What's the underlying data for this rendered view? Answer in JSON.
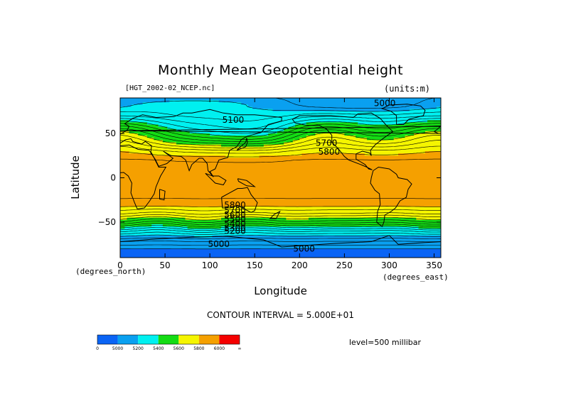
{
  "chart_data": {
    "type": "heatmap",
    "title": "Monthly Mean Geopotential height",
    "source": "[HGT_2002-02_NCEP.nc]",
    "units": "(units:m)",
    "xlabel": "Longitude",
    "ylabel": "Latitude",
    "x_unit_label": "(degrees_north)",
    "y_unit_label": "(degrees_east)",
    "xlim": [
      0,
      357.5
    ],
    "ylim": [
      -90,
      90
    ],
    "x_ticks": [
      0,
      50,
      100,
      150,
      200,
      250,
      300,
      350
    ],
    "y_ticks": [
      50,
      0,
      -50
    ],
    "contour_interval_text": "CONTOUR INTERVAL = 5.000E+01",
    "level_text": "level=500 millibar",
    "color_bands": [
      {
        "range": [
          0,
          5000
        ],
        "color": "#0a64f5"
      },
      {
        "range": [
          5000,
          5200
        ],
        "color": "#0aa0f0"
      },
      {
        "range": [
          5200,
          5400
        ],
        "color": "#00f0f0"
      },
      {
        "range": [
          5400,
          5600
        ],
        "color": "#14dc14"
      },
      {
        "range": [
          5600,
          5800
        ],
        "color": "#f5f500"
      },
      {
        "range": [
          5800,
          6000
        ],
        "color": "#f5a000"
      },
      {
        "range": [
          6000,
          99999
        ],
        "color": "#f50000"
      }
    ],
    "colorbar_labels": [
      "0",
      "5000",
      "5200",
      "5400",
      "5600",
      "5800",
      "6000",
      "∞"
    ],
    "contour_labels": [
      {
        "text": "5000",
        "x": 295,
        "y": 81
      },
      {
        "text": "5100",
        "x": 126,
        "y": 62
      },
      {
        "text": "5700",
        "x": 230,
        "y": 36
      },
      {
        "text": "5800",
        "x": 233,
        "y": 26
      },
      {
        "text": "5800",
        "x": 128,
        "y": -34
      },
      {
        "text": "5700",
        "x": 128,
        "y": -40
      },
      {
        "text": "5600",
        "x": 128,
        "y": -45
      },
      {
        "text": "5500",
        "x": 128,
        "y": -50
      },
      {
        "text": "5400",
        "x": 128,
        "y": -55
      },
      {
        "text": "5300",
        "x": 128,
        "y": -60
      },
      {
        "text": "5200",
        "x": 128,
        "y": -63
      },
      {
        "text": "5000",
        "x": 110,
        "y": -78
      },
      {
        "text": "5000",
        "x": 205,
        "y": -83
      }
    ],
    "height_field": {
      "description_of_values": "zonal-mean 500 hPa geopotential height (m) by latitude",
      "lat": [
        90,
        80,
        70,
        60,
        50,
        40,
        30,
        20,
        10,
        0,
        -10,
        -20,
        -30,
        -40,
        -50,
        -60,
        -70,
        -80,
        -90
      ],
      "height": [
        5150,
        5180,
        5260,
        5380,
        5500,
        5620,
        5760,
        5850,
        5870,
        5880,
        5880,
        5860,
        5830,
        5700,
        5520,
        5300,
        5120,
        5000,
        4970
      ]
    }
  }
}
